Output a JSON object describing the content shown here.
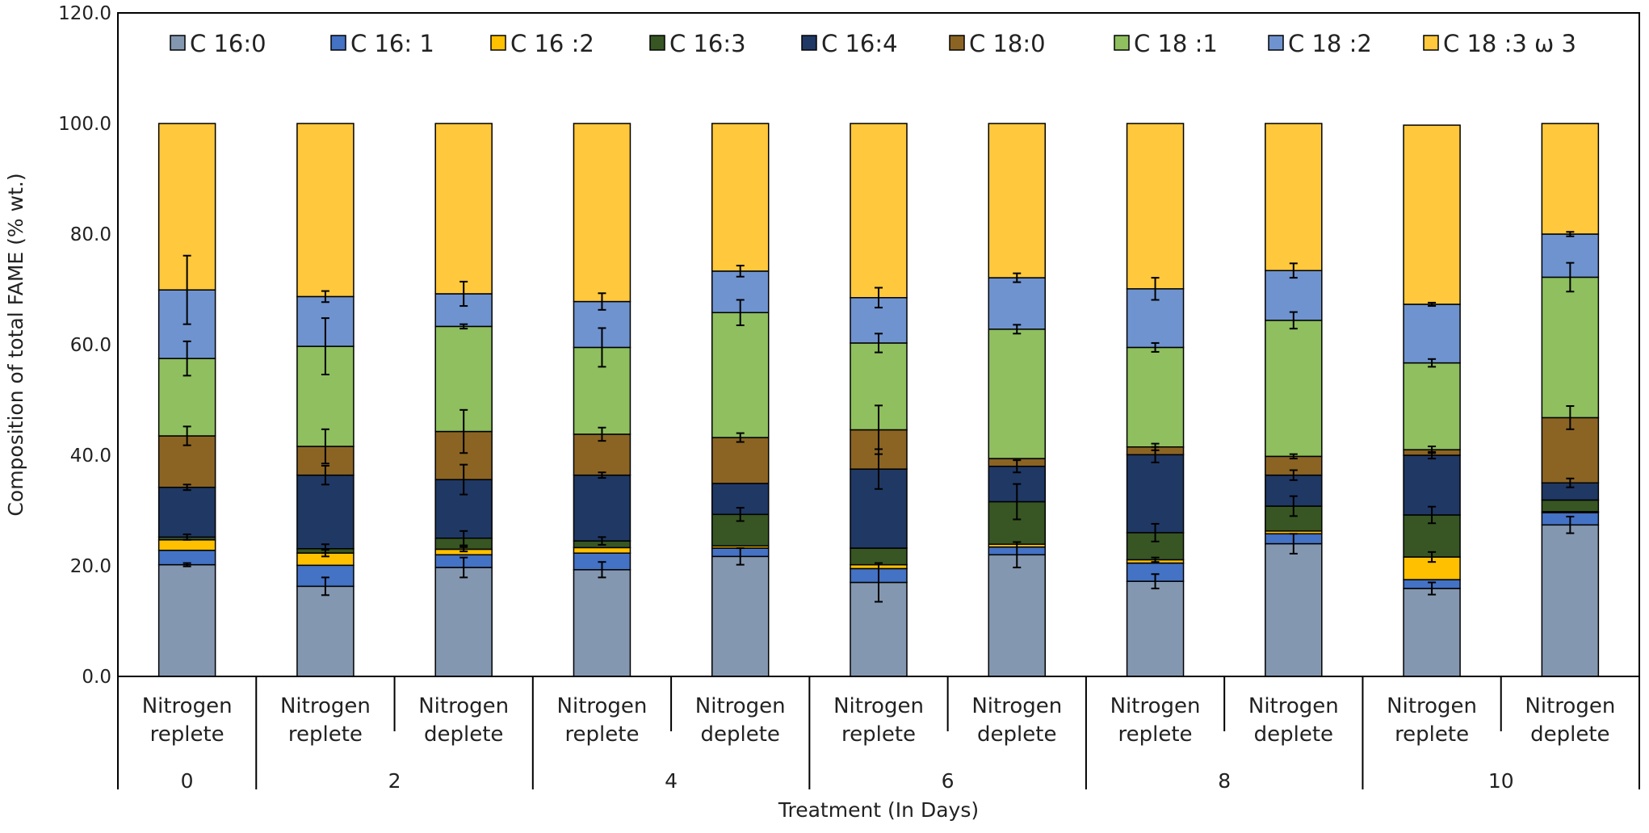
{
  "chart_data": {
    "type": "bar",
    "stacked": true,
    "title": "",
    "xlabel": "Treatment (In Days)",
    "ylabel": "Composition of total FAME (% wt.)",
    "ylim": [
      0,
      120
    ],
    "yticks": [
      "0.0",
      "20.0",
      "40.0",
      "60.0",
      "80.0",
      "100.0",
      "120.0"
    ],
    "legend_position": "top",
    "grid": false,
    "categories": [
      "Nitrogen replete",
      "Nitrogen replete",
      "Nitrogen deplete",
      "Nitrogen replete",
      "Nitrogen deplete",
      "Nitrogen replete",
      "Nitrogen deplete",
      "Nitrogen replete",
      "Nitrogen deplete",
      "Nitrogen replete",
      "Nitrogen deplete"
    ],
    "category_lines": [
      [
        "Nitrogen",
        "replete"
      ],
      [
        "Nitrogen",
        "replete"
      ],
      [
        "Nitrogen",
        "deplete"
      ],
      [
        "Nitrogen",
        "replete"
      ],
      [
        "Nitrogen",
        "deplete"
      ],
      [
        "Nitrogen",
        "replete"
      ],
      [
        "Nitrogen",
        "deplete"
      ],
      [
        "Nitrogen",
        "replete"
      ],
      [
        "Nitrogen",
        "deplete"
      ],
      [
        "Nitrogen",
        "replete"
      ],
      [
        "Nitrogen",
        "deplete"
      ]
    ],
    "groups": [
      {
        "label": "0",
        "count": 1
      },
      {
        "label": "2",
        "count": 2
      },
      {
        "label": "4",
        "count": 2
      },
      {
        "label": "6",
        "count": 2
      },
      {
        "label": "8",
        "count": 2
      },
      {
        "label": "10",
        "count": 2
      }
    ],
    "series": [
      {
        "name": "C 16:0",
        "color": "#8497B0",
        "values": [
          20.2,
          16.3,
          19.7,
          19.3,
          21.7,
          17.0,
          22.0,
          17.2,
          24.0,
          15.9,
          27.4
        ],
        "errors": [
          0.3,
          1.6,
          1.8,
          1.4,
          1.5,
          3.5,
          2.3,
          1.3,
          1.8,
          1.1,
          1.5
        ]
      },
      {
        "name": "C 16: 1",
        "color": "#4472C4",
        "values": [
          2.6,
          3.8,
          2.3,
          3.0,
          1.5,
          2.5,
          1.4,
          3.3,
          1.8,
          1.6,
          2.2
        ],
        "errors": [
          0,
          0,
          0,
          0,
          0,
          0,
          0,
          0,
          0,
          0,
          0
        ]
      },
      {
        "name": "C 16 :2",
        "color": "#FFC000",
        "values": [
          1.9,
          2.2,
          1.0,
          1.0,
          0.4,
          0.7,
          0.5,
          0.6,
          0.5,
          4.1,
          0.2
        ],
        "errors": [
          0,
          0.6,
          0.4,
          0,
          0,
          0,
          0,
          0.4,
          0,
          0.9,
          0
        ]
      },
      {
        "name": "C 16:3",
        "color": "#375623",
        "values": [
          0.5,
          0.8,
          2.0,
          1.2,
          5.7,
          3.0,
          7.7,
          4.9,
          4.5,
          7.6,
          2.1
        ],
        "errors": [
          0.5,
          0.8,
          1.3,
          0.7,
          1.2,
          0,
          3.2,
          1.6,
          1.8,
          1.5,
          0
        ]
      },
      {
        "name": "C 16:4",
        "color": "#203864",
        "values": [
          9.0,
          13.3,
          10.6,
          11.9,
          5.6,
          14.3,
          6.4,
          14.1,
          5.6,
          10.8,
          3.1
        ],
        "errors": [
          0.5,
          1.7,
          2.7,
          0.5,
          0,
          3.6,
          1.1,
          1.4,
          0.9,
          0.6,
          0.8
        ]
      },
      {
        "name": "C 18:0",
        "color": "#8B6424",
        "values": [
          9.3,
          5.2,
          8.7,
          7.4,
          8.3,
          7.1,
          1.4,
          1.4,
          3.4,
          1.0,
          11.8
        ],
        "errors": [
          1.7,
          3.1,
          3.9,
          1.2,
          0.8,
          4.4,
          0,
          0.6,
          0.4,
          0.6,
          2.1
        ]
      },
      {
        "name": "C 18 :1",
        "color": "#8FBF5F",
        "values": [
          14.0,
          18.1,
          19.0,
          15.7,
          22.6,
          15.7,
          23.4,
          18.0,
          24.6,
          15.7,
          25.4
        ],
        "errors": [
          3.1,
          5.1,
          0.4,
          3.5,
          2.3,
          1.7,
          0.8,
          0.8,
          1.5,
          0.7,
          2.6
        ]
      },
      {
        "name": "C 18 :2",
        "color": "#6F93CF",
        "values": [
          12.4,
          9.0,
          5.9,
          8.3,
          7.5,
          8.2,
          9.3,
          10.6,
          9.0,
          10.6,
          7.8
        ],
        "errors": [
          6.2,
          1.0,
          2.2,
          1.5,
          1.0,
          1.8,
          0.8,
          2.0,
          1.3,
          0.3,
          0.4
        ]
      },
      {
        "name": "C 18 :3 ω 3",
        "color": "#FFC83D",
        "values": [
          30.1,
          31.3,
          30.8,
          32.2,
          26.7,
          31.5,
          27.9,
          29.9,
          26.6,
          32.4,
          20.0
        ],
        "errors": [
          0,
          0,
          0,
          0,
          0,
          0,
          0,
          0,
          0,
          0,
          0
        ]
      }
    ]
  }
}
